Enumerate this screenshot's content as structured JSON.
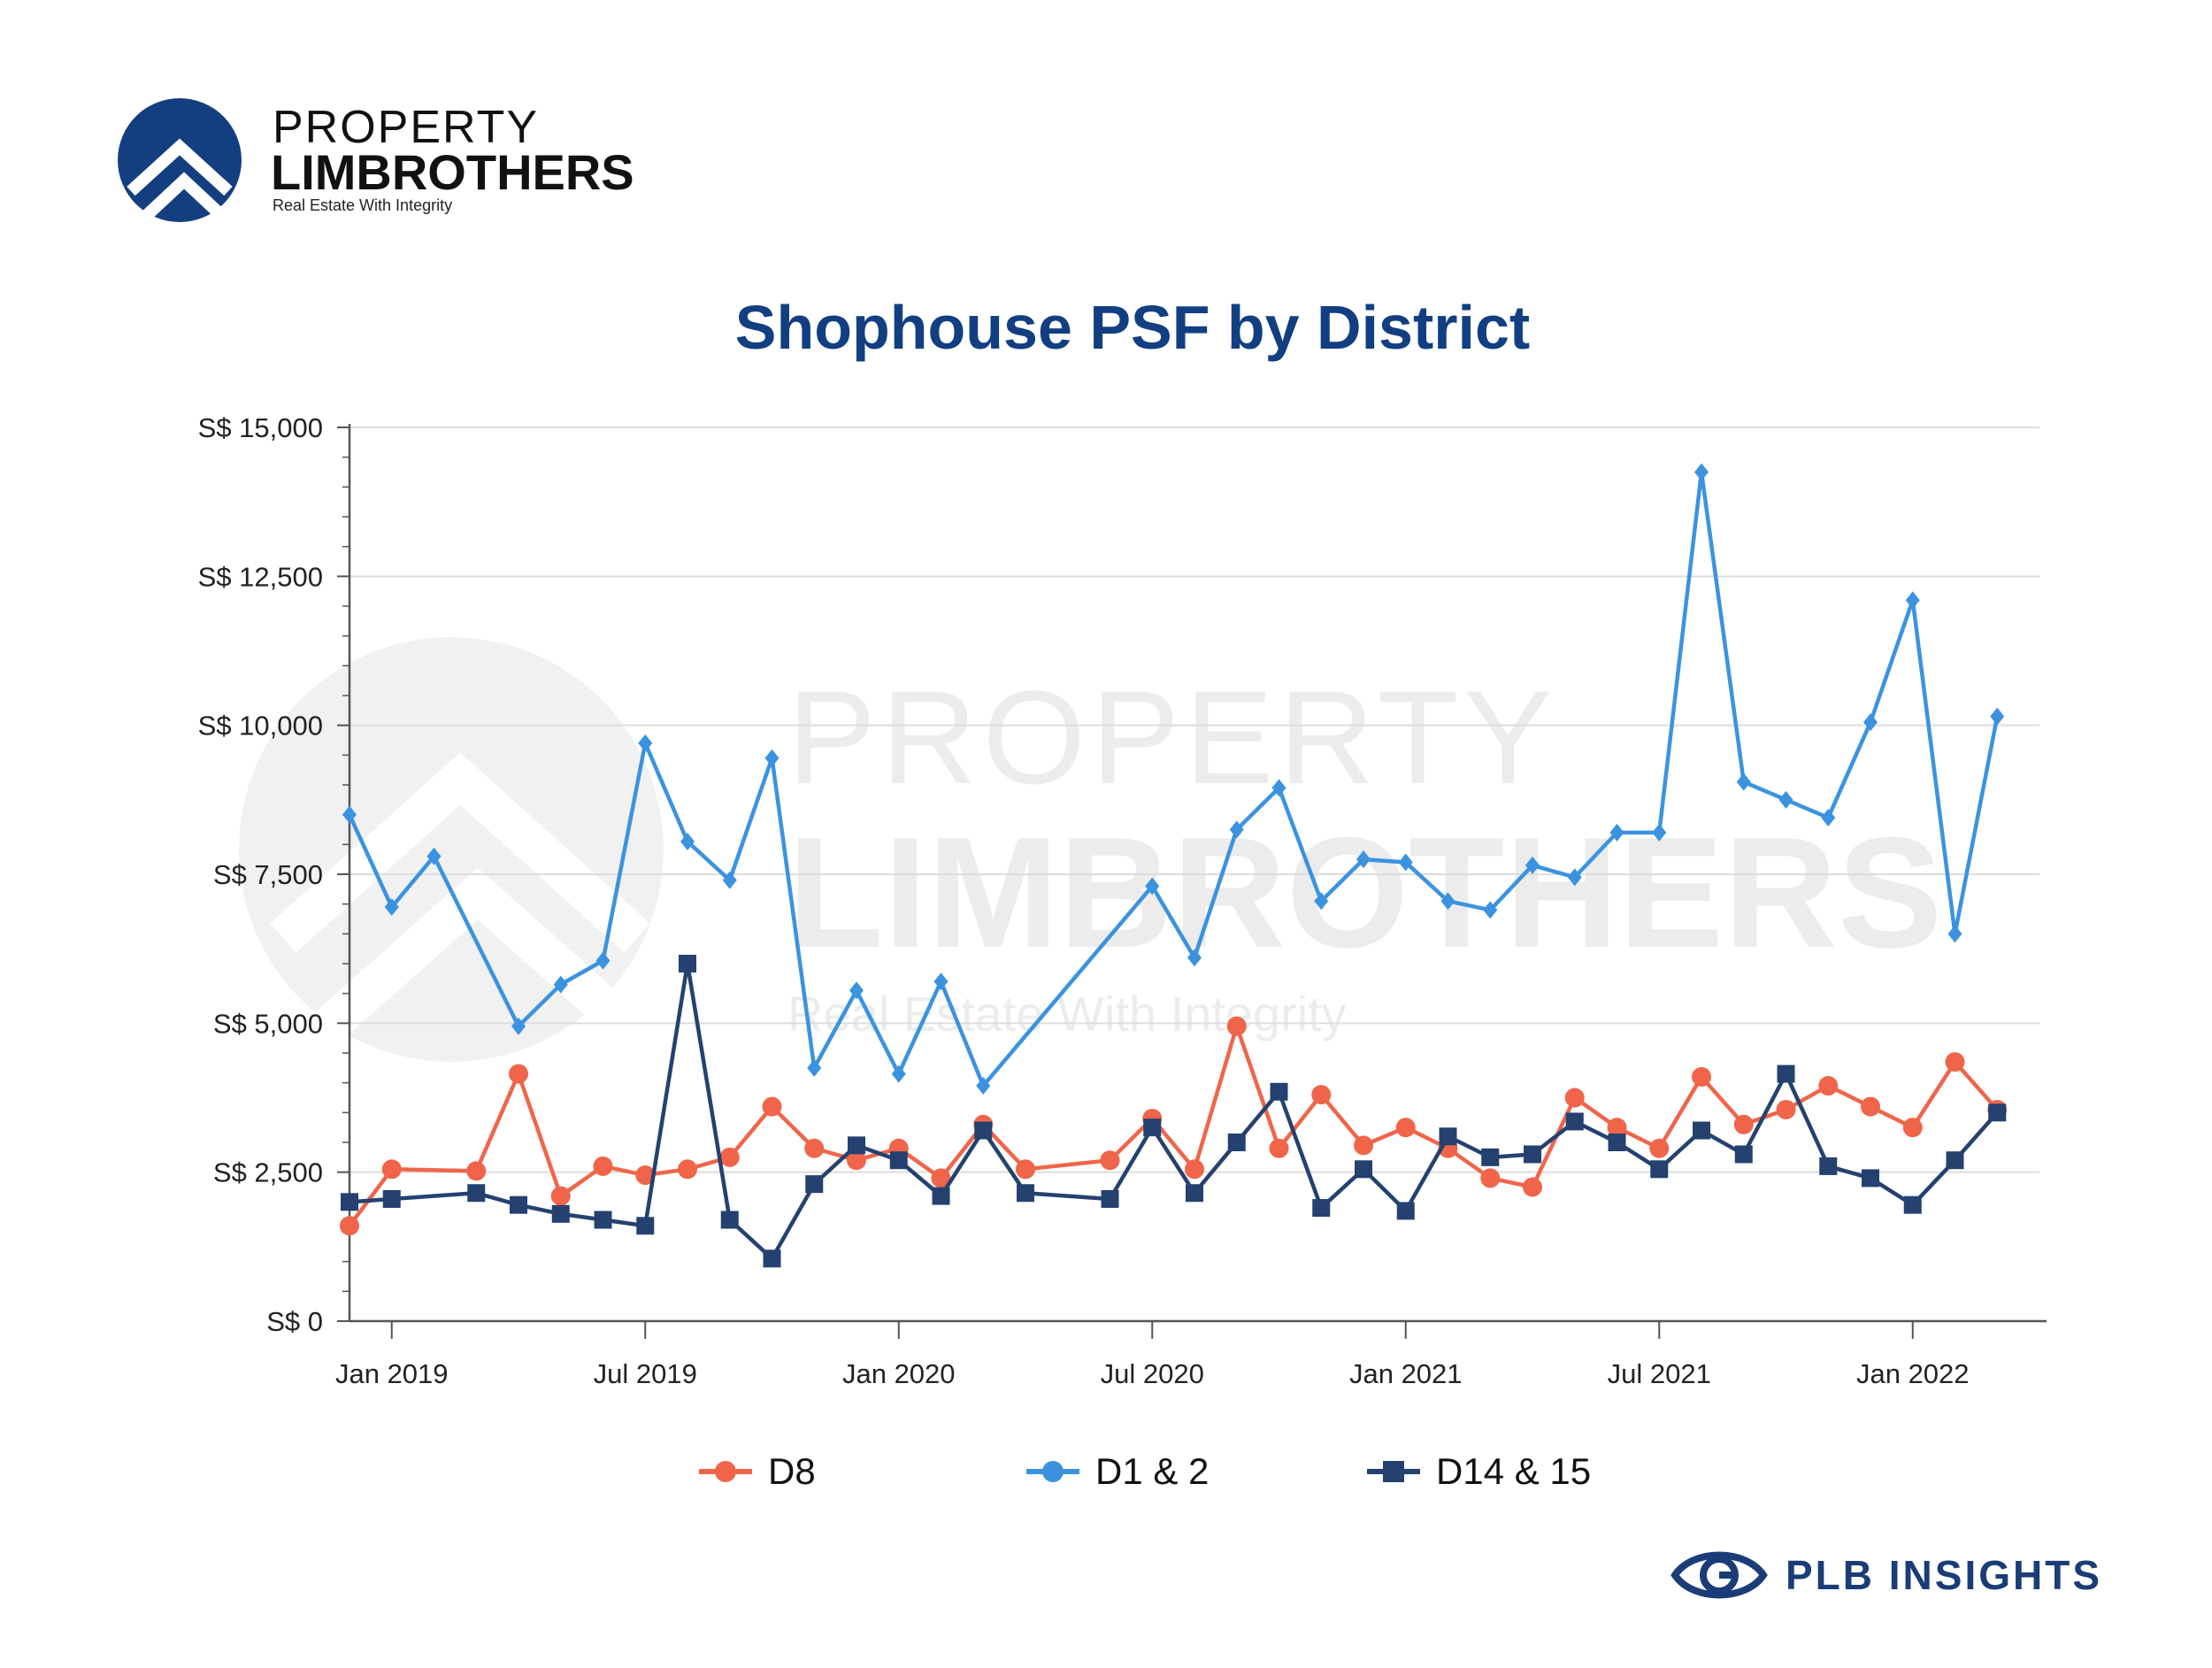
{
  "logo": {
    "line1": "PROPERTY",
    "line2": "LIMBROTHERS",
    "tagline": "Real Estate With Integrity"
  },
  "watermark": {
    "line1": "PROPERTY",
    "line2": "LIMBROTHERS",
    "tagline": "Real Estate With Integrity"
  },
  "brand_footer": {
    "text": "PLB INSIGHTS",
    "icon": "eye-icon"
  },
  "colors": {
    "title": "#123f82",
    "d8": "#f0654a",
    "d1_2": "#3b93e0",
    "d14_15": "#24416f",
    "grid": "#dddddd",
    "axis": "#555555",
    "watermark": "#ececec"
  },
  "chart_data": {
    "type": "line",
    "title": "Shophouse PSF by District",
    "xlabel": "",
    "ylabel": "",
    "x_domain": [
      "2018-12",
      "2022-04"
    ],
    "x_ticks": [
      {
        "value": "2019-01",
        "label": "Jan 2019"
      },
      {
        "value": "2019-07",
        "label": "Jul 2019"
      },
      {
        "value": "2020-01",
        "label": "Jan 2020"
      },
      {
        "value": "2020-07",
        "label": "Jul 2020"
      },
      {
        "value": "2021-01",
        "label": "Jan 2021"
      },
      {
        "value": "2021-07",
        "label": "Jul 2021"
      },
      {
        "value": "2022-01",
        "label": "Jan 2022"
      }
    ],
    "ylim": [
      0,
      15000
    ],
    "y_ticks": [
      {
        "value": 0,
        "label": "S$ 0"
      },
      {
        "value": 2500,
        "label": "S$ 2,500"
      },
      {
        "value": 5000,
        "label": "S$ 5,000"
      },
      {
        "value": 7500,
        "label": "S$ 7,500"
      },
      {
        "value": 10000,
        "label": "S$ 10,000"
      },
      {
        "value": 12500,
        "label": "S$ 12,500"
      },
      {
        "value": 15000,
        "label": "S$ 15,000"
      }
    ],
    "grid": true,
    "legend_position": "bottom",
    "series": [
      {
        "name": "D8",
        "marker": "circle",
        "color": "#f0654a",
        "points": [
          [
            "2018-12",
            1600
          ],
          [
            "2019-01",
            2550
          ],
          [
            "2019-03",
            2520
          ],
          [
            "2019-04",
            4150
          ],
          [
            "2019-05",
            2100
          ],
          [
            "2019-06",
            2600
          ],
          [
            "2019-07",
            2450
          ],
          [
            "2019-08",
            2550
          ],
          [
            "2019-09",
            2750
          ],
          [
            "2019-10",
            3600
          ],
          [
            "2019-11",
            2900
          ],
          [
            "2019-12",
            2700
          ],
          [
            "2020-01",
            2900
          ],
          [
            "2020-02",
            2400
          ],
          [
            "2020-03",
            3300
          ],
          [
            "2020-04",
            2550
          ],
          [
            "2020-06",
            2700
          ],
          [
            "2020-07",
            3400
          ],
          [
            "2020-08",
            2550
          ],
          [
            "2020-09",
            4950
          ],
          [
            "2020-10",
            2900
          ],
          [
            "2020-11",
            3800
          ],
          [
            "2020-12",
            2950
          ],
          [
            "2021-01",
            3250
          ],
          [
            "2021-02",
            2900
          ],
          [
            "2021-03",
            2400
          ],
          [
            "2021-04",
            2250
          ],
          [
            "2021-05",
            3750
          ],
          [
            "2021-06",
            3250
          ],
          [
            "2021-07",
            2900
          ],
          [
            "2021-08",
            4100
          ],
          [
            "2021-09",
            3300
          ],
          [
            "2021-10",
            3550
          ],
          [
            "2021-11",
            3950
          ],
          [
            "2021-12",
            3600
          ],
          [
            "2022-01",
            3250
          ],
          [
            "2022-02",
            4350
          ],
          [
            "2022-03",
            3550
          ]
        ]
      },
      {
        "name": "D1 & 2",
        "marker": "diamond",
        "color": "#3b93e0",
        "points": [
          [
            "2018-12",
            8500
          ],
          [
            "2019-01",
            6950
          ],
          [
            "2019-02",
            7800
          ],
          [
            "2019-04",
            4950
          ],
          [
            "2019-05",
            5650
          ],
          [
            "2019-06",
            6050
          ],
          [
            "2019-07",
            9700
          ],
          [
            "2019-08",
            8050
          ],
          [
            "2019-09",
            7400
          ],
          [
            "2019-10",
            9450
          ],
          [
            "2019-11",
            4250
          ],
          [
            "2019-12",
            5550
          ],
          [
            "2020-01",
            4150
          ],
          [
            "2020-02",
            5700
          ],
          [
            "2020-03",
            3950
          ],
          [
            "2020-07",
            7300
          ],
          [
            "2020-08",
            6100
          ],
          [
            "2020-09",
            8250
          ],
          [
            "2020-10",
            8950
          ],
          [
            "2020-11",
            7050
          ],
          [
            "2020-12",
            7750
          ],
          [
            "2021-01",
            7700
          ],
          [
            "2021-02",
            7050
          ],
          [
            "2021-03",
            6900
          ],
          [
            "2021-04",
            7650
          ],
          [
            "2021-05",
            7450
          ],
          [
            "2021-06",
            8200
          ],
          [
            "2021-07",
            8200
          ],
          [
            "2021-08",
            14250
          ],
          [
            "2021-09",
            9050
          ],
          [
            "2021-10",
            8750
          ],
          [
            "2021-11",
            8450
          ],
          [
            "2021-12",
            10050
          ],
          [
            "2022-01",
            12100
          ],
          [
            "2022-02",
            6500
          ],
          [
            "2022-03",
            10150
          ]
        ]
      },
      {
        "name": "D14 & 15",
        "marker": "square",
        "color": "#24416f",
        "points": [
          [
            "2018-12",
            2000
          ],
          [
            "2019-01",
            2050
          ],
          [
            "2019-03",
            2150
          ],
          [
            "2019-04",
            1950
          ],
          [
            "2019-05",
            1800
          ],
          [
            "2019-06",
            1700
          ],
          [
            "2019-07",
            1600
          ],
          [
            "2019-08",
            6000
          ],
          [
            "2019-09",
            1700
          ],
          [
            "2019-10",
            1050
          ],
          [
            "2019-11",
            2300
          ],
          [
            "2019-12",
            2950
          ],
          [
            "2020-01",
            2700
          ],
          [
            "2020-02",
            2100
          ],
          [
            "2020-03",
            3200
          ],
          [
            "2020-04",
            2150
          ],
          [
            "2020-06",
            2050
          ],
          [
            "2020-07",
            3250
          ],
          [
            "2020-08",
            2150
          ],
          [
            "2020-09",
            3000
          ],
          [
            "2020-10",
            3850
          ],
          [
            "2020-11",
            1900
          ],
          [
            "2020-12",
            2550
          ],
          [
            "2021-01",
            1850
          ],
          [
            "2021-02",
            3100
          ],
          [
            "2021-03",
            2750
          ],
          [
            "2021-04",
            2800
          ],
          [
            "2021-05",
            3350
          ],
          [
            "2021-06",
            3000
          ],
          [
            "2021-07",
            2550
          ],
          [
            "2021-08",
            3200
          ],
          [
            "2021-09",
            2800
          ],
          [
            "2021-10",
            4150
          ],
          [
            "2021-11",
            2600
          ],
          [
            "2021-12",
            2400
          ],
          [
            "2022-01",
            1950
          ],
          [
            "2022-02",
            2700
          ],
          [
            "2022-03",
            3500
          ]
        ]
      }
    ]
  }
}
